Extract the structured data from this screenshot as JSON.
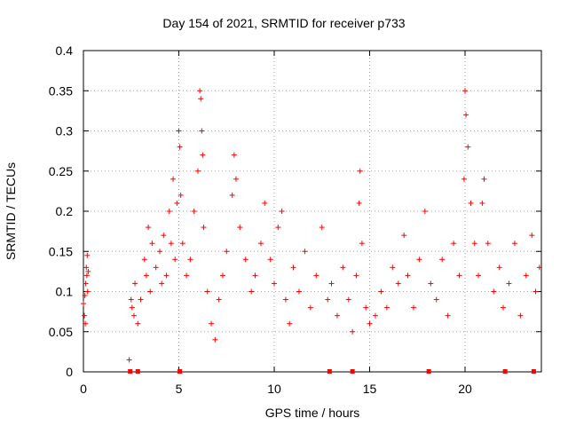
{
  "chart_data": {
    "type": "scatter",
    "title": "Day 154 of 2021, SRMTID for receiver p733",
    "xlabel": "GPS time / hours",
    "ylabel": "SRMTID / TECUs",
    "xlim": [
      0,
      24
    ],
    "ylim": [
      0,
      0.4
    ],
    "xticks": [
      0,
      5,
      10,
      15,
      20
    ],
    "yticks": [
      0,
      0.05,
      0.1,
      0.15,
      0.2,
      0.25,
      0.3,
      0.35,
      0.4
    ],
    "ytick_labels": [
      "0",
      "0.05",
      "0.1",
      "0.15",
      "0.2",
      "0.25",
      "0.3",
      "0.35",
      "0.4"
    ],
    "grid": true,
    "marker": "+",
    "color": "#ff0000",
    "zero_markers_x": [
      2.45,
      2.85,
      5.05,
      12.9,
      14.1,
      18.1,
      22.1,
      23.6
    ],
    "series": [
      {
        "name": "SRMTID",
        "points": [
          [
            0.0,
            0.085
          ],
          [
            0.05,
            0.07
          ],
          [
            0.08,
            0.095
          ],
          [
            0.1,
            0.06
          ],
          [
            0.12,
            0.11
          ],
          [
            0.15,
            0.13
          ],
          [
            0.18,
            0.12
          ],
          [
            0.2,
            0.145
          ],
          [
            0.22,
            0.1
          ],
          [
            0.25,
            0.125
          ],
          [
            2.4,
            0.015
          ],
          [
            2.5,
            0.09
          ],
          [
            2.55,
            0.08
          ],
          [
            2.65,
            0.07
          ],
          [
            2.7,
            0.11
          ],
          [
            2.85,
            0.06
          ],
          [
            3.0,
            0.09
          ],
          [
            3.2,
            0.14
          ],
          [
            3.3,
            0.12
          ],
          [
            3.4,
            0.18
          ],
          [
            3.5,
            0.1
          ],
          [
            3.6,
            0.16
          ],
          [
            3.8,
            0.13
          ],
          [
            4.0,
            0.15
          ],
          [
            4.1,
            0.11
          ],
          [
            4.2,
            0.17
          ],
          [
            4.35,
            0.12
          ],
          [
            4.5,
            0.2
          ],
          [
            4.6,
            0.16
          ],
          [
            4.7,
            0.24
          ],
          [
            4.8,
            0.14
          ],
          [
            4.9,
            0.21
          ],
          [
            5.0,
            0.3
          ],
          [
            5.05,
            0.28
          ],
          [
            5.1,
            0.22
          ],
          [
            5.2,
            0.16
          ],
          [
            5.4,
            0.12
          ],
          [
            5.6,
            0.14
          ],
          [
            5.8,
            0.2
          ],
          [
            6.0,
            0.25
          ],
          [
            6.1,
            0.35
          ],
          [
            6.15,
            0.34
          ],
          [
            6.2,
            0.3
          ],
          [
            6.25,
            0.27
          ],
          [
            6.3,
            0.18
          ],
          [
            6.5,
            0.1
          ],
          [
            6.7,
            0.06
          ],
          [
            6.9,
            0.04
          ],
          [
            7.1,
            0.09
          ],
          [
            7.3,
            0.12
          ],
          [
            7.5,
            0.15
          ],
          [
            7.8,
            0.22
          ],
          [
            7.9,
            0.27
          ],
          [
            8.0,
            0.24
          ],
          [
            8.2,
            0.18
          ],
          [
            8.5,
            0.14
          ],
          [
            8.8,
            0.1
          ],
          [
            9.0,
            0.12
          ],
          [
            9.3,
            0.16
          ],
          [
            9.5,
            0.21
          ],
          [
            9.8,
            0.14
          ],
          [
            10.0,
            0.11
          ],
          [
            10.2,
            0.18
          ],
          [
            10.4,
            0.2
          ],
          [
            10.6,
            0.09
          ],
          [
            10.8,
            0.06
          ],
          [
            11.0,
            0.13
          ],
          [
            11.3,
            0.1
          ],
          [
            11.6,
            0.15
          ],
          [
            11.9,
            0.08
          ],
          [
            12.2,
            0.12
          ],
          [
            12.5,
            0.18
          ],
          [
            12.8,
            0.09
          ],
          [
            13.0,
            0.11
          ],
          [
            13.3,
            0.07
          ],
          [
            13.6,
            0.13
          ],
          [
            13.9,
            0.09
          ],
          [
            14.1,
            0.05
          ],
          [
            14.3,
            0.12
          ],
          [
            14.45,
            0.21
          ],
          [
            14.5,
            0.25
          ],
          [
            14.6,
            0.16
          ],
          [
            14.8,
            0.08
          ],
          [
            15.0,
            0.06
          ],
          [
            15.3,
            0.07
          ],
          [
            15.6,
            0.1
          ],
          [
            15.9,
            0.08
          ],
          [
            16.2,
            0.13
          ],
          [
            16.5,
            0.11
          ],
          [
            16.8,
            0.17
          ],
          [
            17.0,
            0.12
          ],
          [
            17.3,
            0.08
          ],
          [
            17.6,
            0.14
          ],
          [
            17.9,
            0.2
          ],
          [
            18.2,
            0.11
          ],
          [
            18.5,
            0.09
          ],
          [
            18.8,
            0.14
          ],
          [
            19.1,
            0.07
          ],
          [
            19.4,
            0.16
          ],
          [
            19.7,
            0.12
          ],
          [
            19.95,
            0.24
          ],
          [
            20.0,
            0.35
          ],
          [
            20.05,
            0.32
          ],
          [
            20.15,
            0.28
          ],
          [
            20.3,
            0.21
          ],
          [
            20.5,
            0.16
          ],
          [
            20.7,
            0.12
          ],
          [
            20.9,
            0.21
          ],
          [
            21.0,
            0.24
          ],
          [
            21.2,
            0.16
          ],
          [
            21.5,
            0.1
          ],
          [
            21.8,
            0.13
          ],
          [
            22.0,
            0.08
          ],
          [
            22.3,
            0.11
          ],
          [
            22.6,
            0.16
          ],
          [
            22.9,
            0.07
          ],
          [
            23.2,
            0.12
          ],
          [
            23.5,
            0.17
          ],
          [
            23.7,
            0.1
          ],
          [
            23.9,
            0.13
          ]
        ]
      }
    ]
  }
}
